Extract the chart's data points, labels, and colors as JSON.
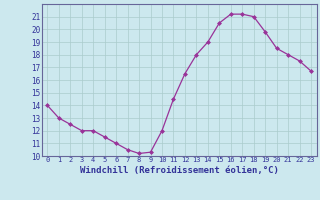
{
  "x": [
    0,
    1,
    2,
    3,
    4,
    5,
    6,
    7,
    8,
    9,
    10,
    11,
    12,
    13,
    14,
    15,
    16,
    17,
    18,
    19,
    20,
    21,
    22,
    23
  ],
  "y": [
    14,
    13,
    12.5,
    12,
    12,
    11.5,
    11,
    10.5,
    10.2,
    10.3,
    12,
    14.5,
    16.5,
    18,
    19,
    20.5,
    21.2,
    21.2,
    21,
    19.8,
    18.5,
    18,
    17.5,
    16.7
  ],
  "line_color": "#993399",
  "bg_color": "#cce8ee",
  "grid_color": "#aacccc",
  "xlabel": "Windchill (Refroidissement éolien,°C)",
  "xlabel_color": "#333399",
  "tick_color": "#333399",
  "spine_color": "#666699",
  "ylim": [
    10,
    22
  ],
  "xlim": [
    -0.5,
    23.5
  ],
  "yticks": [
    10,
    11,
    12,
    13,
    14,
    15,
    16,
    17,
    18,
    19,
    20,
    21
  ],
  "xticks": [
    0,
    1,
    2,
    3,
    4,
    5,
    6,
    7,
    8,
    9,
    10,
    11,
    12,
    13,
    14,
    15,
    16,
    17,
    18,
    19,
    20,
    21,
    22,
    23
  ],
  "marker": "D",
  "marker_size": 2.0,
  "line_width": 0.9
}
